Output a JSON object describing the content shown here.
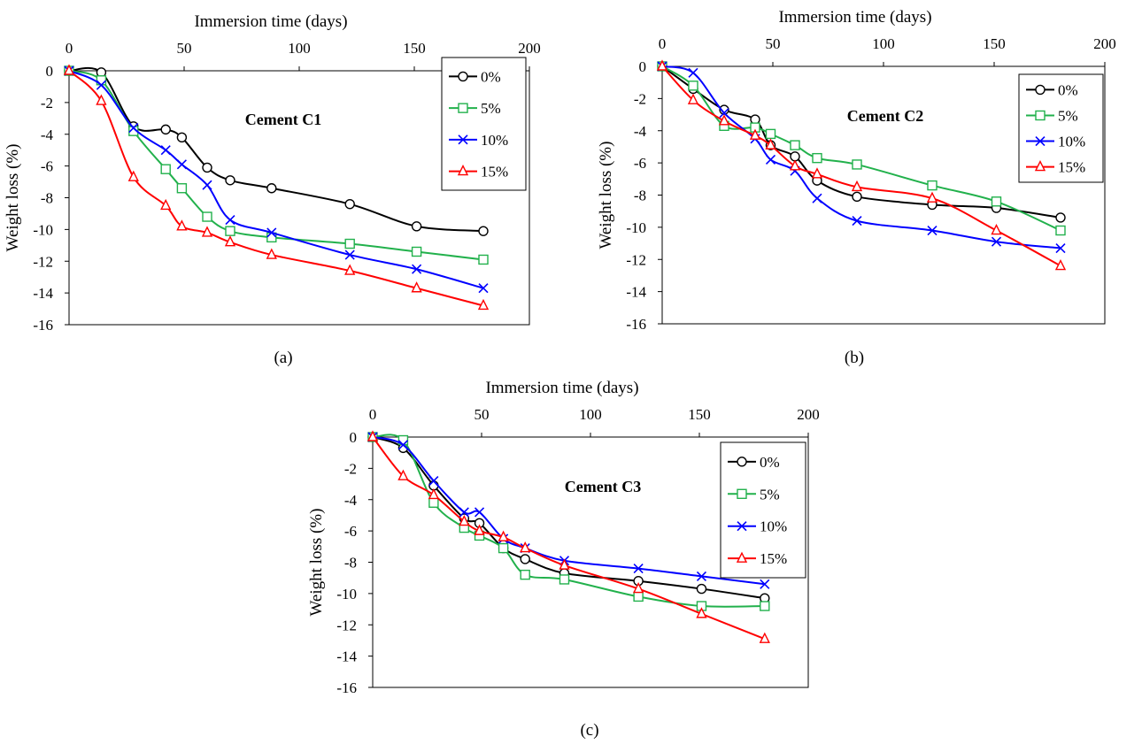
{
  "colors": {
    "0%": "#000000",
    "5%": "#22b14c",
    "10%": "#0000ff",
    "15%": "#ff0000"
  },
  "chart_data": [
    {
      "panel": "(a)",
      "type": "line",
      "title": "Cement C1",
      "xlabel": "Immersion time (days)",
      "ylabel": "Weight loss (%)",
      "xlim": [
        0,
        200
      ],
      "ylim": [
        -16,
        0
      ],
      "xticks": [
        0,
        50,
        100,
        150,
        200
      ],
      "yticks": [
        0,
        -2,
        -4,
        -6,
        -8,
        -10,
        -12,
        -14,
        -16
      ],
      "x_axis_position": "top",
      "grid": false,
      "legend_position": "top-right",
      "series": [
        {
          "name": "0%",
          "marker": "circle",
          "x": [
            0,
            14,
            28,
            42,
            49,
            60,
            70,
            88,
            122,
            151,
            180
          ],
          "y": [
            0,
            -0.1,
            -3.5,
            -3.7,
            -4.2,
            -6.1,
            -6.9,
            -7.4,
            -8.4,
            -9.8,
            -10.1
          ]
        },
        {
          "name": "5%",
          "marker": "square",
          "x": [
            0,
            14,
            28,
            42,
            49,
            60,
            70,
            88,
            122,
            151,
            180
          ],
          "y": [
            0,
            -0.6,
            -3.8,
            -6.2,
            -7.4,
            -9.2,
            -10.1,
            -10.5,
            -10.9,
            -11.4,
            -11.9
          ]
        },
        {
          "name": "10%",
          "marker": "x",
          "x": [
            0,
            14,
            28,
            42,
            49,
            60,
            70,
            88,
            122,
            151,
            180
          ],
          "y": [
            0,
            -0.9,
            -3.6,
            -5.0,
            -5.9,
            -7.2,
            -9.4,
            -10.2,
            -11.6,
            -12.5,
            -13.7
          ]
        },
        {
          "name": "15%",
          "marker": "triangle",
          "x": [
            0,
            14,
            28,
            42,
            49,
            60,
            70,
            88,
            122,
            151,
            180
          ],
          "y": [
            0,
            -1.9,
            -6.7,
            -8.5,
            -9.8,
            -10.2,
            -10.8,
            -11.6,
            -12.6,
            -13.7,
            -14.8
          ]
        }
      ]
    },
    {
      "panel": "(b)",
      "type": "line",
      "title": "Cement C2",
      "xlabel": "Immersion time (days)",
      "ylabel": "Weight loss (%)",
      "xlim": [
        0,
        200
      ],
      "ylim": [
        -16,
        0
      ],
      "xticks": [
        0,
        50,
        100,
        150,
        200
      ],
      "yticks": [
        0,
        -2,
        -4,
        -6,
        -8,
        -10,
        -12,
        -14,
        -16
      ],
      "x_axis_position": "top",
      "grid": false,
      "legend_position": "top-right",
      "series": [
        {
          "name": "0%",
          "marker": "circle",
          "x": [
            0,
            14,
            28,
            42,
            49,
            60,
            70,
            88,
            122,
            151,
            180
          ],
          "y": [
            0,
            -1.4,
            -2.7,
            -3.3,
            -4.9,
            -5.6,
            -7.1,
            -8.1,
            -8.6,
            -8.8,
            -9.4
          ]
        },
        {
          "name": "5%",
          "marker": "square",
          "x": [
            0,
            14,
            28,
            42,
            49,
            60,
            70,
            88,
            122,
            151,
            180
          ],
          "y": [
            0,
            -1.2,
            -3.7,
            -3.8,
            -4.2,
            -4.9,
            -5.7,
            -6.1,
            -7.4,
            -8.4,
            -10.2
          ]
        },
        {
          "name": "10%",
          "marker": "x",
          "x": [
            0,
            14,
            28,
            42,
            49,
            60,
            70,
            88,
            122,
            151,
            180
          ],
          "y": [
            0,
            -0.4,
            -2.9,
            -4.5,
            -5.8,
            -6.5,
            -8.2,
            -9.6,
            -10.2,
            -10.9,
            -11.3
          ]
        },
        {
          "name": "15%",
          "marker": "triangle",
          "x": [
            0,
            14,
            28,
            42,
            49,
            60,
            70,
            88,
            122,
            151,
            180
          ],
          "y": [
            0,
            -2.1,
            -3.4,
            -4.3,
            -4.9,
            -6.2,
            -6.7,
            -7.5,
            -8.2,
            -10.2,
            -12.4
          ]
        }
      ]
    },
    {
      "panel": "(c)",
      "type": "line",
      "title": "Cement C3",
      "xlabel": "Immersion time (days)",
      "ylabel": "Weight loss (%)",
      "xlim": [
        0,
        200
      ],
      "ylim": [
        -16,
        0
      ],
      "xticks": [
        0,
        50,
        100,
        150,
        200
      ],
      "yticks": [
        0,
        -2,
        -4,
        -6,
        -8,
        -10,
        -12,
        -14,
        -16
      ],
      "x_axis_position": "top",
      "grid": false,
      "legend_position": "top-right",
      "series": [
        {
          "name": "0%",
          "marker": "circle",
          "x": [
            0,
            14,
            28,
            42,
            49,
            60,
            70,
            88,
            122,
            151,
            180
          ],
          "y": [
            0,
            -0.7,
            -3.1,
            -5.2,
            -5.5,
            -7.1,
            -7.8,
            -8.7,
            -9.2,
            -9.7,
            -10.3
          ]
        },
        {
          "name": "5%",
          "marker": "square",
          "x": [
            0,
            14,
            28,
            42,
            49,
            60,
            70,
            88,
            122,
            151,
            180
          ],
          "y": [
            0,
            -0.2,
            -4.2,
            -5.8,
            -6.3,
            -7.1,
            -8.8,
            -9.1,
            -10.2,
            -10.8,
            -10.8
          ]
        },
        {
          "name": "10%",
          "marker": "x",
          "x": [
            0,
            14,
            28,
            42,
            49,
            60,
            70,
            88,
            122,
            151,
            180
          ],
          "y": [
            0,
            -0.5,
            -2.8,
            -4.8,
            -4.8,
            -6.5,
            -7.1,
            -7.9,
            -8.4,
            -8.9,
            -9.4
          ]
        },
        {
          "name": "15%",
          "marker": "triangle",
          "x": [
            0,
            14,
            28,
            42,
            49,
            60,
            70,
            88,
            122,
            151,
            180
          ],
          "y": [
            0,
            -2.5,
            -3.7,
            -5.4,
            -6.0,
            -6.4,
            -7.1,
            -8.2,
            -9.7,
            -11.3,
            -12.9
          ]
        }
      ]
    }
  ]
}
